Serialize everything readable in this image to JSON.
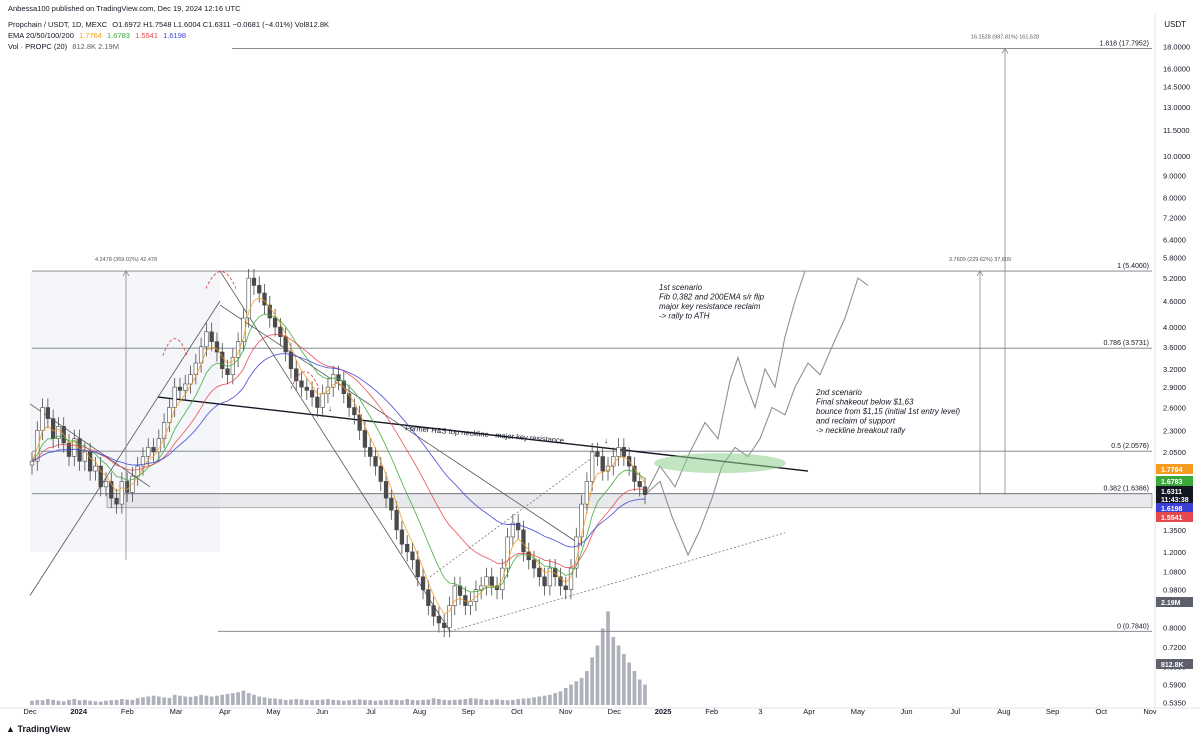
{
  "header": {
    "published": "Anbessa100 published on TradingView.com, Dec 19, 2024 12:16 UTC",
    "symbol": "Propchain / USDT, 1D, MEXC",
    "ohlc": "O1.6972  H1.7548  L1.6004  C1.6311  −0.0681 (−4.01%)  Vol812.8K",
    "ema_label": "EMA 20/50/100/200",
    "ema_values": [
      "1.7764",
      "1.6783",
      "1.5541",
      "1.6198"
    ],
    "vol_label": "Vol · PROPC (20)",
    "vol_values": "812.8K  2.19M"
  },
  "brand": "TradingView",
  "currency": "USDT",
  "colors": {
    "ema20": "#f59b1f",
    "ema50": "#3aa83a",
    "ema100": "#e5484d",
    "ema200": "#3c3fd6",
    "candle": "#4a4a4a",
    "fib": "#787b86",
    "ellipse": "#8ccf8c"
  },
  "chart_data": {
    "type": "candlestick",
    "y_scale": "log",
    "ylim": [
      0.52,
      20.5
    ],
    "x_ticks": [
      "Dec",
      "2024",
      "Feb",
      "Mar",
      "Apr",
      "May",
      "Jun",
      "Jul",
      "Aug",
      "Sep",
      "Oct",
      "Nov",
      "Dec",
      "2025",
      "Feb",
      "3",
      "Apr",
      "May",
      "Jun",
      "Jul",
      "Aug",
      "Sep",
      "Oct",
      "Nov"
    ],
    "y_ticks": [
      "18.0000",
      "16.0000",
      "14.5000",
      "13.0000",
      "11.5000",
      "10.0000",
      "9.0000",
      "8.0000",
      "7.2000",
      "6.4000",
      "5.8000",
      "5.2000",
      "4.6000",
      "4.0000",
      "3.6000",
      "3.2000",
      "2.9000",
      "2.6000",
      "2.3000",
      "2.0500",
      "1.3500",
      "1.2000",
      "1.0800",
      "0.9800",
      "0.8000",
      "0.7200",
      "0.6500",
      "0.5900",
      "0.5350"
    ],
    "price_tags": [
      {
        "value": "1.7764",
        "color": "#f59b1f"
      },
      {
        "value": "1.6783",
        "color": "#3aa83a"
      },
      {
        "value": "1.6311",
        "color": "#131722"
      },
      {
        "value": "11:43:38",
        "color": "#131722"
      },
      {
        "value": "1.6198",
        "color": "#3c3fd6"
      },
      {
        "value": "1.5541",
        "color": "#e5484d"
      },
      {
        "value": "2.19M",
        "color": "#5d606b"
      },
      {
        "value": "812.8K",
        "color": "#5d606b"
      }
    ],
    "fib_levels": [
      {
        "label": "1.618 (17.7952)",
        "value": 17.7952
      },
      {
        "label": "1 (5.4000)",
        "value": 5.4
      },
      {
        "label": "0.786 (3.5731)",
        "value": 3.5731
      },
      {
        "label": "0.5 (2.0576)",
        "value": 2.0576
      },
      {
        "label": "0.382 (1.6386)",
        "value": 1.6386
      },
      {
        "label": "0 (0.7840)",
        "value": 0.784
      }
    ],
    "measure_labels": [
      "16.1528 (987.81%) 161,528",
      "4.2478 (369.02%) 42,478",
      "3.7609 (229.62%) 37,609"
    ],
    "annotations": {
      "neckline": "Former H&S top neckline - major key resistance",
      "scenario1": [
        "1st scenario",
        "Fib 0,382 and 200EMA s/r flip",
        "major key resistance reclaim",
        "-> rally to ATH"
      ],
      "scenario2": [
        "2nd scenario",
        "Final shakeout below $1,63",
        "bounce from $1,15 (initial 1st entry level)",
        "and reclaim of support",
        "-> neckline breakout rally"
      ]
    },
    "price_path": [
      1.95,
      2.3,
      2.6,
      2.45,
      2.2,
      2.35,
      2.15,
      2.0,
      2.2,
      1.95,
      2.05,
      1.85,
      1.9,
      1.7,
      1.75,
      1.6,
      1.55,
      1.75,
      1.65,
      1.8,
      1.9,
      2.0,
      2.1,
      2.05,
      2.2,
      2.4,
      2.6,
      2.9,
      2.85,
      2.95,
      3.1,
      3.3,
      3.6,
      3.9,
      3.7,
      3.5,
      3.2,
      3.1,
      3.4,
      3.7,
      4.2,
      5.2,
      5.0,
      4.8,
      4.5,
      4.2,
      4.0,
      3.8,
      3.5,
      3.2,
      3.0,
      2.9,
      2.85,
      2.75,
      2.6,
      2.8,
      2.9,
      3.1,
      3.0,
      2.8,
      2.6,
      2.5,
      2.3,
      2.1,
      2.0,
      1.9,
      1.75,
      1.6,
      1.5,
      1.35,
      1.25,
      1.2,
      1.15,
      1.05,
      0.98,
      0.9,
      0.85,
      0.82,
      0.8,
      0.9,
      1.0,
      0.95,
      0.9,
      0.92,
      0.98,
      1.0,
      1.05,
      1.0,
      0.98,
      1.1,
      1.3,
      1.4,
      1.35,
      1.2,
      1.15,
      1.1,
      1.05,
      1.0,
      1.1,
      1.05,
      1.0,
      0.98,
      1.1,
      1.3,
      1.55,
      1.75,
      2.05,
      2.0,
      1.85,
      1.9,
      2.0,
      2.1,
      2.0,
      1.9,
      1.75,
      1.7,
      1.63
    ],
    "volume_path": [
      0.25,
      0.3,
      0.28,
      0.35,
      0.3,
      0.25,
      0.22,
      0.3,
      0.35,
      0.28,
      0.3,
      0.25,
      0.22,
      0.2,
      0.25,
      0.28,
      0.3,
      0.35,
      0.32,
      0.3,
      0.4,
      0.45,
      0.5,
      0.55,
      0.5,
      0.45,
      0.42,
      0.6,
      0.55,
      0.5,
      0.48,
      0.52,
      0.6,
      0.55,
      0.5,
      0.55,
      0.6,
      0.65,
      0.7,
      0.75,
      0.85,
      0.7,
      0.6,
      0.5,
      0.45,
      0.4,
      0.38,
      0.35,
      0.3,
      0.32,
      0.35,
      0.33,
      0.3,
      0.28,
      0.3,
      0.32,
      0.35,
      0.3,
      0.28,
      0.25,
      0.28,
      0.3,
      0.33,
      0.3,
      0.28,
      0.25,
      0.28,
      0.3,
      0.32,
      0.3,
      0.28,
      0.35,
      0.3,
      0.28,
      0.3,
      0.32,
      0.4,
      0.35,
      0.3,
      0.28,
      0.3,
      0.32,
      0.35,
      0.4,
      0.38,
      0.35,
      0.3,
      0.32,
      0.34,
      0.3,
      0.28,
      0.3,
      0.35,
      0.38,
      0.4,
      0.45,
      0.5,
      0.55,
      0.6,
      0.7,
      0.8,
      1.0,
      1.2,
      1.4,
      1.6,
      2.0,
      2.8,
      3.5,
      4.5,
      5.5,
      4.0,
      3.5,
      3.0,
      2.5,
      2.0,
      1.5,
      1.2
    ]
  }
}
